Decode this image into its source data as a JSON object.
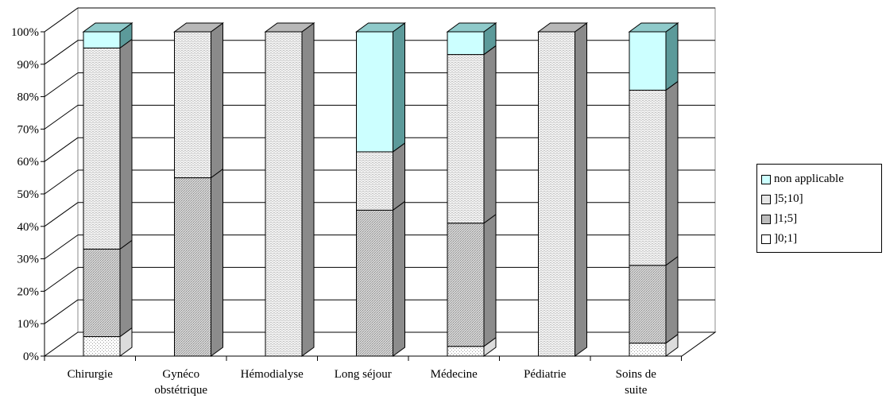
{
  "chart_data": {
    "type": "bar",
    "stacked": true,
    "percent": true,
    "three_d": true,
    "categories": [
      [
        "Chirurgie"
      ],
      [
        "Gynéco",
        "obstétrique"
      ],
      [
        "Hémodialyse"
      ],
      [
        "Long séjour"
      ],
      [
        "Médecine"
      ],
      [
        "Pédiatrie"
      ],
      [
        "Soins de",
        "suite"
      ]
    ],
    "series": [
      {
        "name": "]0;1]",
        "color": "#ffffff",
        "pattern": "dots",
        "values": [
          6,
          0,
          0,
          0,
          3,
          0,
          4
        ]
      },
      {
        "name": "]1;5]",
        "color": "#c8c8c8",
        "pattern": "dense",
        "values": [
          27,
          55,
          0,
          45,
          38,
          0,
          24
        ]
      },
      {
        "name": "]5;10]",
        "color": "#e6e6e6",
        "pattern": "light",
        "values": [
          62,
          45,
          100,
          18,
          52,
          100,
          54
        ]
      },
      {
        "name": "non applicable",
        "color": "#ccffff",
        "pattern": "solid",
        "values": [
          5,
          0,
          0,
          37,
          7,
          0,
          18
        ]
      }
    ],
    "yticks": [
      "0%",
      "10%",
      "20%",
      "30%",
      "40%",
      "50%",
      "60%",
      "70%",
      "80%",
      "90%",
      "100%"
    ],
    "ylim": [
      0,
      100
    ],
    "grid": true,
    "legend_position": "right"
  }
}
